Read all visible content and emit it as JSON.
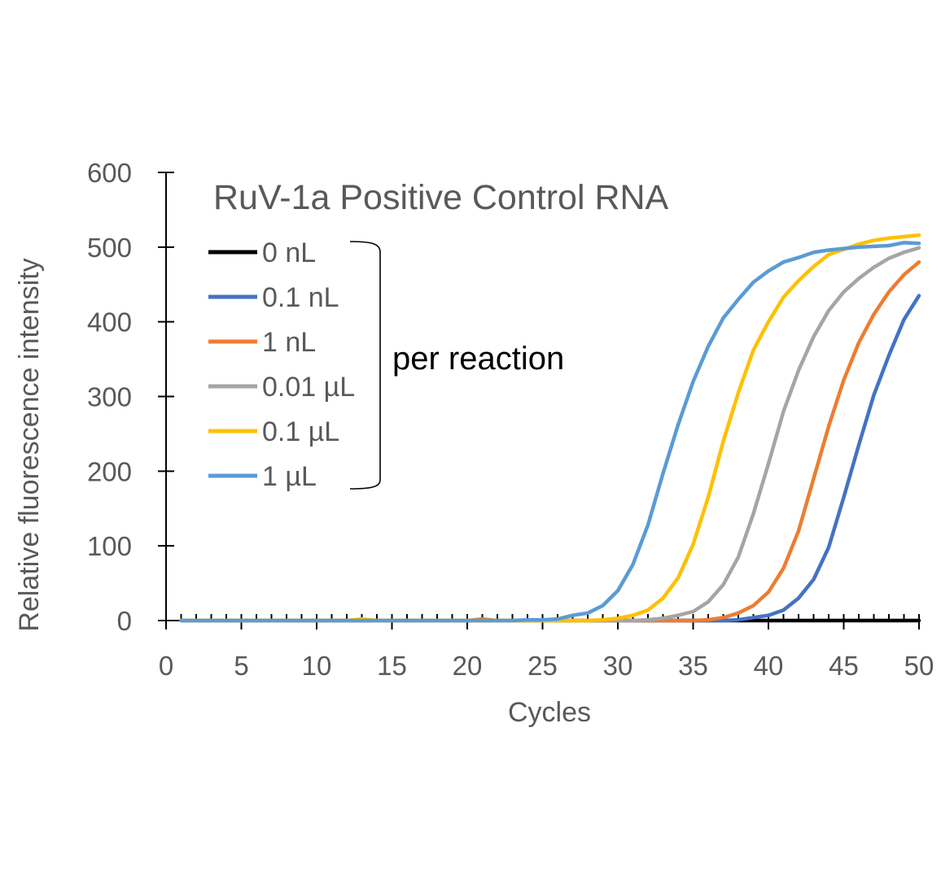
{
  "chart_data": {
    "type": "line",
    "title": "RuV-1a Positive Control RNA",
    "xlabel": "Cycles",
    "ylabel": "Relative fluorescence intensity",
    "xlim": [
      0,
      50
    ],
    "ylim": [
      0,
      600
    ],
    "xticks": [
      0,
      5,
      10,
      15,
      20,
      25,
      30,
      35,
      40,
      45,
      50
    ],
    "yticks": [
      0,
      100,
      200,
      300,
      400,
      500,
      600
    ],
    "grid": false,
    "legend_placement": "top-left",
    "legend_annotation": "per reaction",
    "x": [
      1,
      2,
      3,
      4,
      5,
      6,
      7,
      8,
      9,
      10,
      11,
      12,
      13,
      14,
      15,
      16,
      17,
      18,
      19,
      20,
      21,
      22,
      23,
      24,
      25,
      26,
      27,
      28,
      29,
      30,
      31,
      32,
      33,
      34,
      35,
      36,
      37,
      38,
      39,
      40,
      41,
      42,
      43,
      44,
      45,
      46,
      47,
      48,
      49,
      50
    ],
    "series": [
      {
        "name": "0 nL",
        "color": "#000000",
        "values": [
          0,
          0,
          0,
          0,
          0,
          0,
          0,
          0,
          0,
          0,
          0,
          0,
          0,
          0,
          0,
          0,
          0,
          0,
          0,
          0,
          0,
          0,
          0,
          0,
          0,
          0,
          0,
          0,
          0,
          0,
          0,
          0,
          0,
          0,
          0,
          0,
          0,
          0,
          0,
          0,
          0,
          0,
          0,
          0,
          0,
          0,
          0,
          0,
          0,
          0
        ]
      },
      {
        "name": "0.1 nL",
        "color": "#4472C4",
        "values": [
          0,
          0,
          0,
          0,
          0,
          0,
          0,
          0,
          0,
          0,
          0,
          0,
          0,
          0,
          0,
          0,
          0,
          0,
          0,
          0,
          0,
          0,
          0,
          0,
          0,
          0,
          0,
          0,
          0,
          0,
          0,
          0,
          0,
          0,
          0,
          0,
          0,
          1,
          4,
          7,
          14,
          30,
          55,
          98,
          165,
          235,
          302,
          355,
          403,
          435
        ]
      },
      {
        "name": "1 nL",
        "color": "#ED7D31",
        "values": [
          0,
          0,
          0,
          0,
          0,
          0,
          0,
          0,
          0,
          0,
          0,
          0,
          0,
          0,
          0,
          0,
          0,
          0,
          0,
          0,
          2,
          0,
          0,
          0,
          0,
          0,
          0,
          0,
          0,
          0,
          0,
          0,
          0,
          0,
          0,
          1,
          4,
          10,
          20,
          38,
          70,
          120,
          190,
          260,
          322,
          372,
          410,
          440,
          463,
          480
        ]
      },
      {
        "name": "0.01 µL",
        "color": "#A5A5A5",
        "values": [
          0,
          0,
          0,
          0,
          0,
          0,
          0,
          0,
          0,
          0,
          0,
          0,
          0,
          0,
          0,
          0,
          0,
          0,
          0,
          0,
          0,
          0,
          0,
          0,
          0,
          0,
          0,
          0,
          0,
          0,
          0,
          1,
          3,
          7,
          12,
          25,
          48,
          85,
          143,
          210,
          280,
          335,
          380,
          415,
          440,
          458,
          473,
          485,
          493,
          499
        ]
      },
      {
        "name": "0.1 µL",
        "color": "#FFC000",
        "values": [
          0,
          0,
          0,
          0,
          0,
          0,
          0,
          0,
          0,
          0,
          0,
          0,
          2,
          0,
          0,
          0,
          0,
          0,
          0,
          0,
          0,
          0,
          0,
          0,
          0,
          0,
          0,
          0,
          1,
          3,
          7,
          14,
          30,
          57,
          102,
          165,
          240,
          305,
          362,
          400,
          433,
          455,
          474,
          490,
          497,
          504,
          509,
          512,
          514,
          516
        ]
      },
      {
        "name": "1 µL",
        "color": "#5B9BD5",
        "values": [
          0,
          0,
          0,
          0,
          0,
          0,
          0,
          0,
          0,
          0,
          0,
          0,
          0,
          0,
          0,
          0,
          0,
          0,
          0,
          0,
          0,
          0,
          0,
          1,
          1,
          2,
          7,
          10,
          20,
          40,
          75,
          128,
          197,
          262,
          320,
          367,
          405,
          430,
          453,
          468,
          480,
          486,
          493,
          496,
          498,
          500,
          501,
          502,
          506,
          505
        ]
      }
    ]
  }
}
